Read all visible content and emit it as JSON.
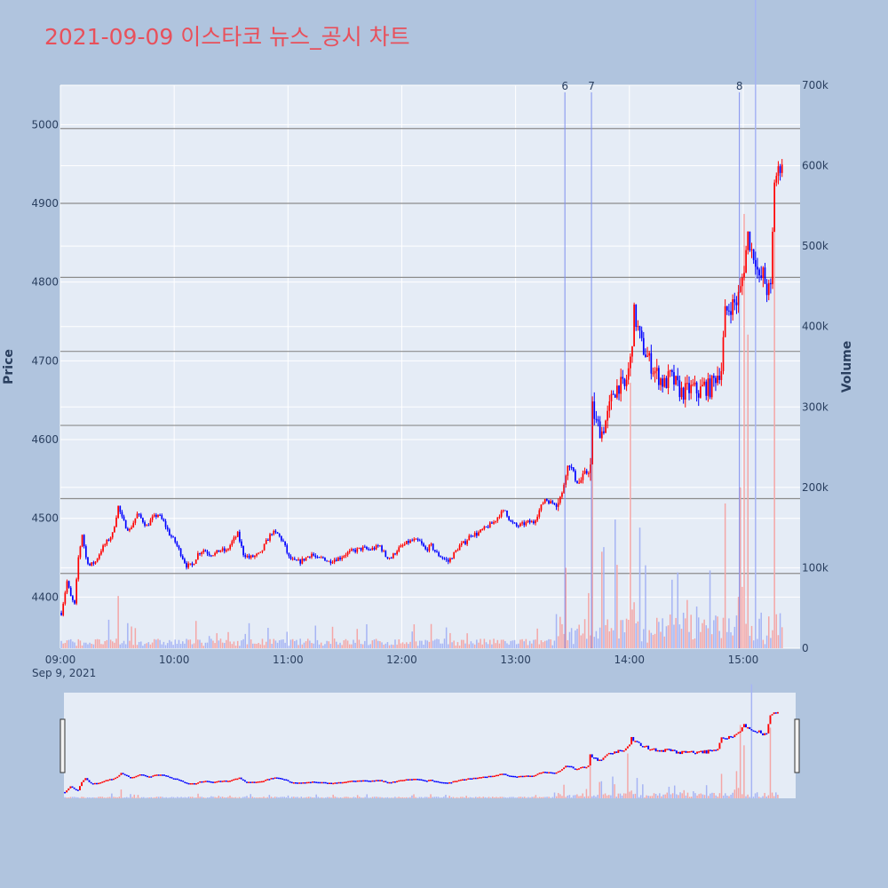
{
  "title": "2021-09-09 이스타코 뉴스_공시 차트",
  "colors": {
    "background": "#b0c4de",
    "plot_bg": "#e5ecf6",
    "title": "#e8505b",
    "up": "#ff0000",
    "down": "#0000ff",
    "volume_up": "#f4a6a6",
    "volume_down": "#a6b4f4",
    "event_line": "#7f8fef",
    "hline": "#8c8c8c"
  },
  "chart_data": {
    "type": "candlestick",
    "xlabel": "",
    "x_date_label": "Sep 9, 2021",
    "ylabel": "Price",
    "y2label": "Volume",
    "ylim": [
      4335,
      5050
    ],
    "y2lim": [
      0,
      700000
    ],
    "x_range": [
      "09:00",
      "15:30"
    ],
    "x_ticks": [
      "09:00",
      "10:00",
      "11:00",
      "12:00",
      "13:00",
      "14:00",
      "15:00"
    ],
    "y_ticks": [
      4400,
      4500,
      4600,
      4700,
      4800,
      4900,
      5000
    ],
    "y2_ticks": [
      "0",
      "100k",
      "200k",
      "300k",
      "400k",
      "500k",
      "600k",
      "700k"
    ],
    "hlines": [
      4430,
      4525,
      4618,
      4712,
      4806,
      4900,
      4995
    ],
    "events": [
      {
        "label": "6",
        "time": "13:26"
      },
      {
        "label": "7",
        "time": "13:40"
      },
      {
        "label": "8",
        "time": "14:58"
      }
    ],
    "price_path": [
      [
        "09:00",
        4380
      ],
      [
        "09:03",
        4420
      ],
      [
        "09:05",
        4400
      ],
      [
        "09:07",
        4390
      ],
      [
        "09:09",
        4450
      ],
      [
        "09:11",
        4480
      ],
      [
        "09:13",
        4450
      ],
      [
        "09:15",
        4440
      ],
      [
        "09:18",
        4445
      ],
      [
        "09:21",
        4460
      ],
      [
        "09:24",
        4470
      ],
      [
        "09:27",
        4480
      ],
      [
        "09:30",
        4515
      ],
      [
        "09:32",
        4500
      ],
      [
        "09:34",
        4490
      ],
      [
        "09:36",
        4485
      ],
      [
        "09:38",
        4495
      ],
      [
        "09:40",
        4505
      ],
      [
        "09:42",
        4500
      ],
      [
        "09:45",
        4490
      ],
      [
        "09:48",
        4500
      ],
      [
        "09:51",
        4505
      ],
      [
        "09:54",
        4495
      ],
      [
        "09:57",
        4480
      ],
      [
        "10:00",
        4470
      ],
      [
        "10:03",
        4455
      ],
      [
        "10:06",
        4440
      ],
      [
        "10:09",
        4440
      ],
      [
        "10:12",
        4455
      ],
      [
        "10:15",
        4460
      ],
      [
        "10:18",
        4455
      ],
      [
        "10:21",
        4455
      ],
      [
        "10:24",
        4460
      ],
      [
        "10:27",
        4458
      ],
      [
        "10:30",
        4470
      ],
      [
        "10:33",
        4480
      ],
      [
        "10:36",
        4455
      ],
      [
        "10:39",
        4450
      ],
      [
        "10:42",
        4452
      ],
      [
        "10:45",
        4455
      ],
      [
        "10:48",
        4470
      ],
      [
        "10:51",
        4482
      ],
      [
        "10:54",
        4480
      ],
      [
        "10:57",
        4470
      ],
      [
        "11:00",
        4450
      ],
      [
        "11:03",
        4445
      ],
      [
        "11:06",
        4445
      ],
      [
        "11:09",
        4450
      ],
      [
        "11:12",
        4455
      ],
      [
        "11:15",
        4448
      ],
      [
        "11:18",
        4450
      ],
      [
        "11:21",
        4445
      ],
      [
        "11:24",
        4448
      ],
      [
        "11:27",
        4450
      ],
      [
        "11:30",
        4455
      ],
      [
        "11:33",
        4458
      ],
      [
        "11:36",
        4460
      ],
      [
        "11:39",
        4462
      ],
      [
        "11:42",
        4460
      ],
      [
        "11:45",
        4462
      ],
      [
        "11:48",
        4465
      ],
      [
        "11:51",
        4452
      ],
      [
        "11:54",
        4450
      ],
      [
        "11:57",
        4460
      ],
      [
        "12:00",
        4465
      ],
      [
        "12:03",
        4470
      ],
      [
        "12:06",
        4472
      ],
      [
        "12:09",
        4470
      ],
      [
        "12:12",
        4460
      ],
      [
        "12:15",
        4465
      ],
      [
        "12:18",
        4455
      ],
      [
        "12:21",
        4450
      ],
      [
        "12:24",
        4445
      ],
      [
        "12:27",
        4455
      ],
      [
        "12:30",
        4465
      ],
      [
        "12:33",
        4470
      ],
      [
        "12:36",
        4480
      ],
      [
        "12:39",
        4480
      ],
      [
        "12:42",
        4485
      ],
      [
        "12:45",
        4490
      ],
      [
        "12:48",
        4495
      ],
      [
        "12:51",
        4505
      ],
      [
        "12:54",
        4510
      ],
      [
        "12:57",
        4495
      ],
      [
        "13:00",
        4490
      ],
      [
        "13:03",
        4492
      ],
      [
        "13:06",
        4495
      ],
      [
        "13:09",
        4495
      ],
      [
        "13:12",
        4510
      ],
      [
        "13:15",
        4525
      ],
      [
        "13:18",
        4520
      ],
      [
        "13:21",
        4520
      ],
      [
        "13:24",
        4530
      ],
      [
        "13:26",
        4560
      ],
      [
        "13:28",
        4570
      ],
      [
        "13:30",
        4555
      ],
      [
        "13:33",
        4545
      ],
      [
        "13:36",
        4555
      ],
      [
        "13:39",
        4565
      ],
      [
        "13:40",
        4640
      ],
      [
        "13:42",
        4620
      ],
      [
        "13:45",
        4610
      ],
      [
        "13:48",
        4630
      ],
      [
        "13:51",
        4660
      ],
      [
        "13:54",
        4670
      ],
      [
        "13:57",
        4665
      ],
      [
        "14:00",
        4700
      ],
      [
        "14:02",
        4760
      ],
      [
        "14:04",
        4740
      ],
      [
        "14:06",
        4720
      ],
      [
        "14:08",
        4710
      ],
      [
        "14:10",
        4700
      ],
      [
        "14:12",
        4690
      ],
      [
        "14:15",
        4680
      ],
      [
        "14:18",
        4670
      ],
      [
        "14:21",
        4680
      ],
      [
        "14:24",
        4670
      ],
      [
        "14:27",
        4660
      ],
      [
        "14:30",
        4662
      ],
      [
        "14:33",
        4665
      ],
      [
        "14:36",
        4660
      ],
      [
        "14:39",
        4668
      ],
      [
        "14:42",
        4665
      ],
      [
        "14:45",
        4680
      ],
      [
        "14:48",
        4690
      ],
      [
        "14:50",
        4760
      ],
      [
        "14:53",
        4770
      ],
      [
        "14:56",
        4775
      ],
      [
        "14:58",
        4790
      ],
      [
        "15:00",
        4820
      ],
      [
        "15:02",
        4860
      ],
      [
        "15:04",
        4840
      ],
      [
        "15:06",
        4830
      ],
      [
        "15:08",
        4800
      ],
      [
        "15:10",
        4810
      ],
      [
        "15:12",
        4790
      ],
      [
        "15:14",
        4790
      ],
      [
        "15:16",
        4930
      ],
      [
        "15:18",
        4940
      ],
      [
        "15:20",
        4955
      ]
    ],
    "volume_peaks": [
      [
        "09:30",
        65000
      ],
      [
        "13:26",
        100000
      ],
      [
        "13:40",
        240000
      ],
      [
        "13:45",
        120000
      ],
      [
        "13:52",
        160000
      ],
      [
        "14:00",
        330000
      ],
      [
        "14:05",
        150000
      ],
      [
        "14:30",
        60000
      ],
      [
        "14:50",
        180000
      ],
      [
        "14:58",
        200000
      ],
      [
        "15:00",
        540000
      ],
      [
        "15:02",
        390000
      ],
      [
        "15:06",
        280000
      ],
      [
        "15:16",
        520000
      ]
    ]
  }
}
